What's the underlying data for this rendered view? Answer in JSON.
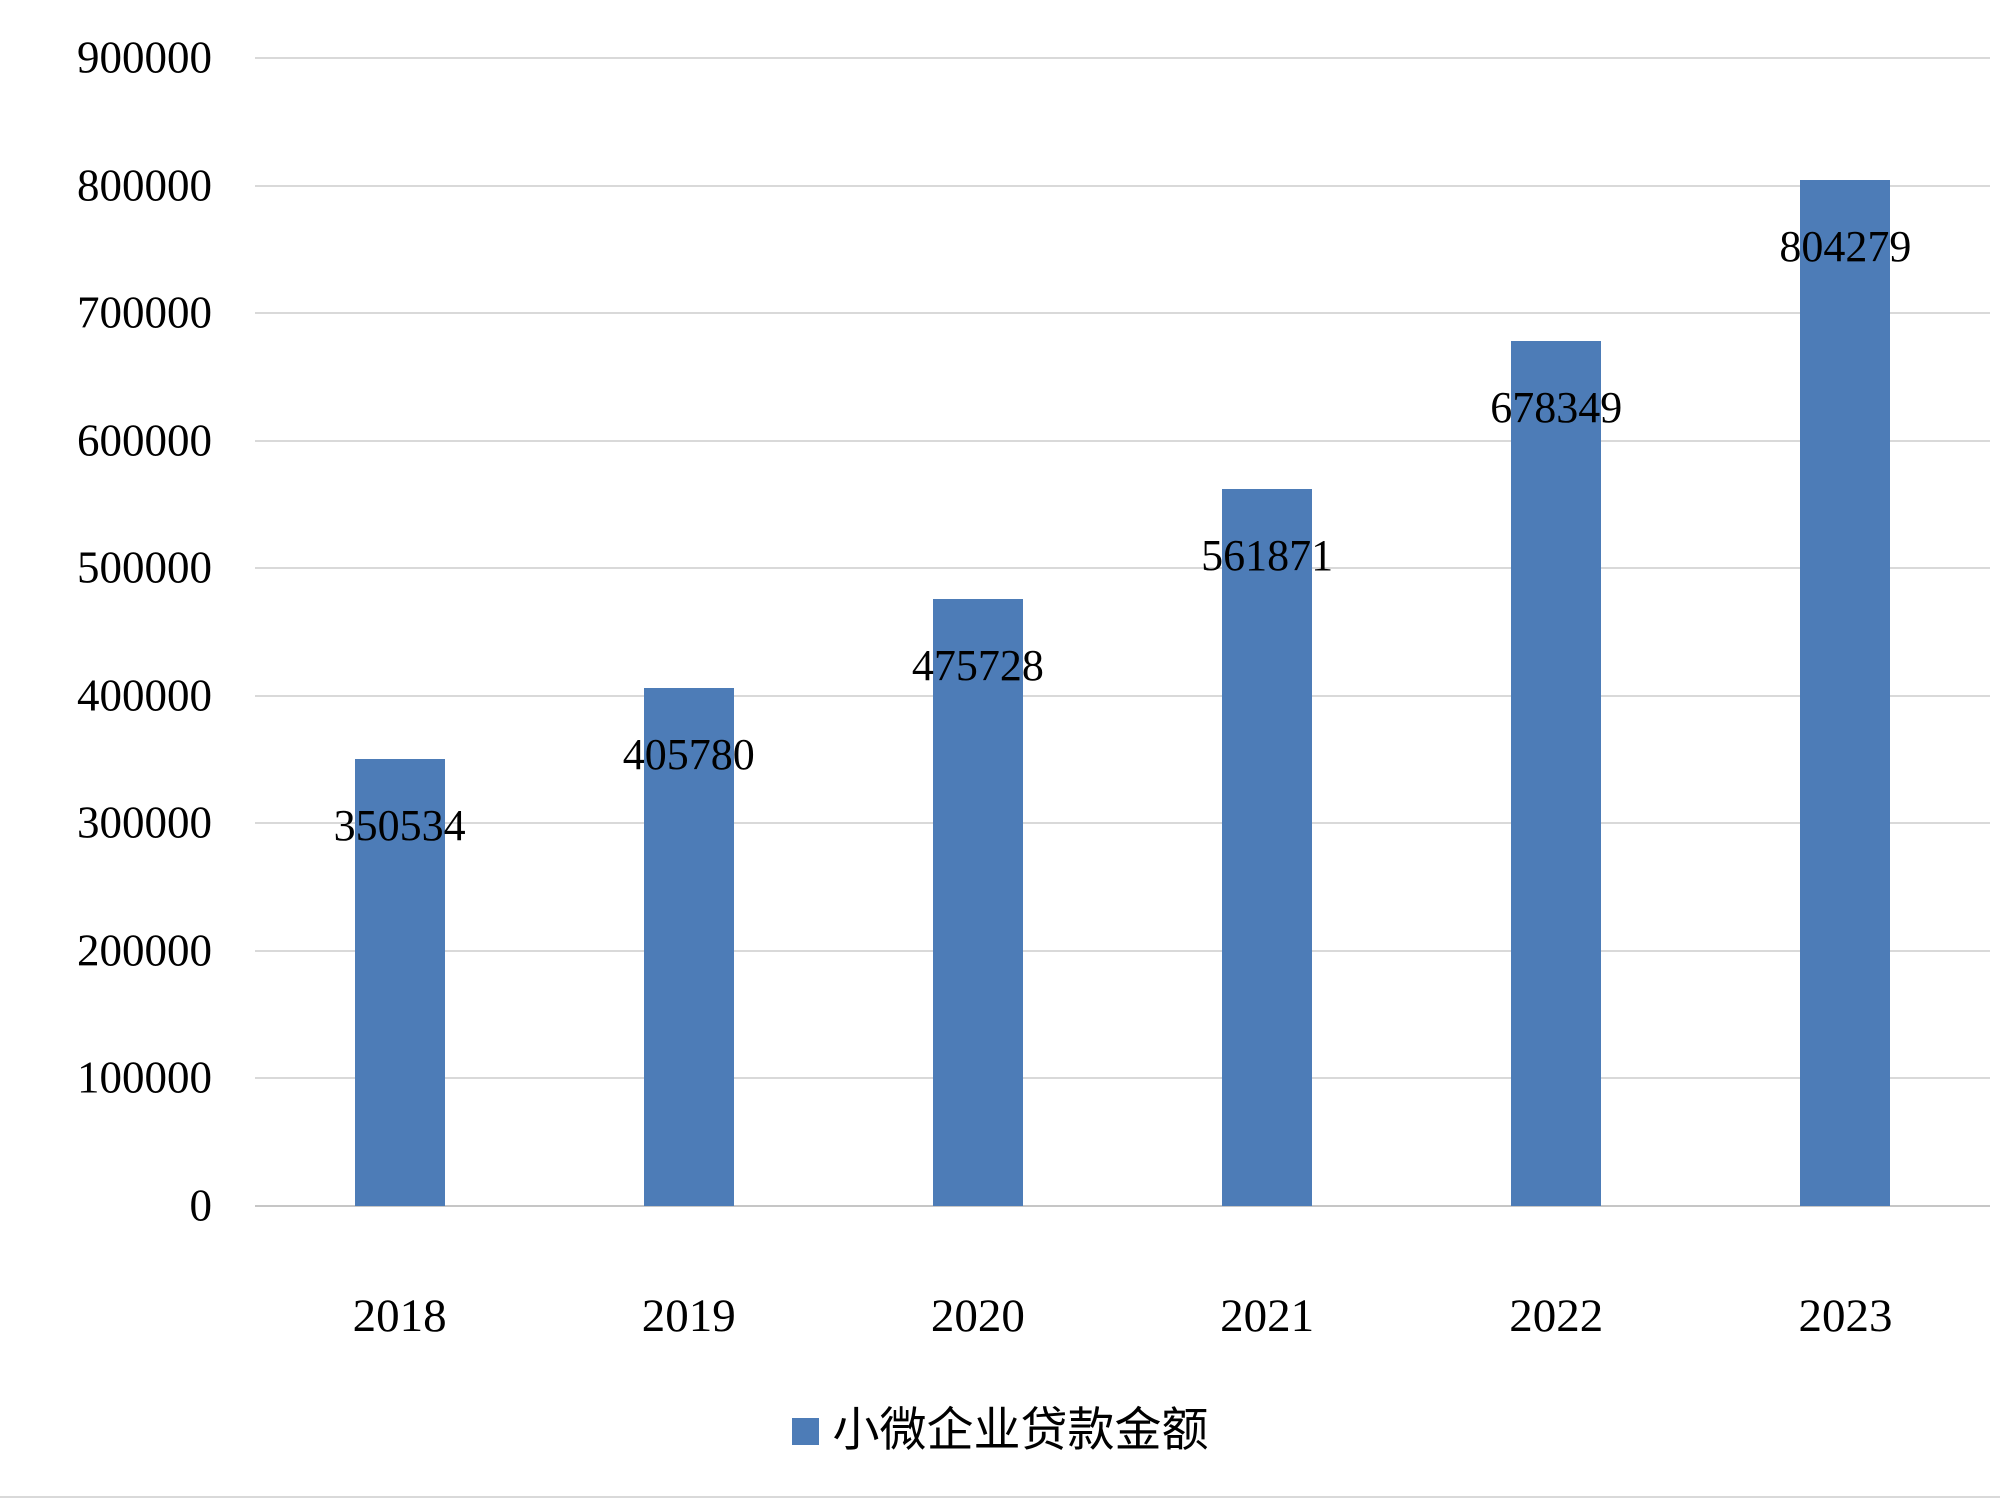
{
  "chart_data": {
    "type": "bar",
    "title": "",
    "categories": [
      "2018",
      "2019",
      "2020",
      "2021",
      "2022",
      "2023"
    ],
    "values": [
      350534,
      405780,
      475728,
      561871,
      678349,
      804279
    ],
    "data_labels": [
      "350534",
      "405780",
      "475728",
      "561871",
      "678349",
      "804279"
    ],
    "series_name": "小微企业贷款金额",
    "legend": "小微企业贷款金额",
    "legend_position": "bottom",
    "xlabel": "",
    "ylabel": "",
    "ylim": [
      0,
      900000
    ],
    "ytick_step": 100000,
    "yticks": [
      0,
      100000,
      200000,
      300000,
      400000,
      500000,
      600000,
      700000,
      800000,
      900000
    ],
    "grid": "horizontal",
    "bar_color": "#4d7cb7",
    "gridline_color": "#d9d9d9",
    "text_color": "#000000"
  }
}
